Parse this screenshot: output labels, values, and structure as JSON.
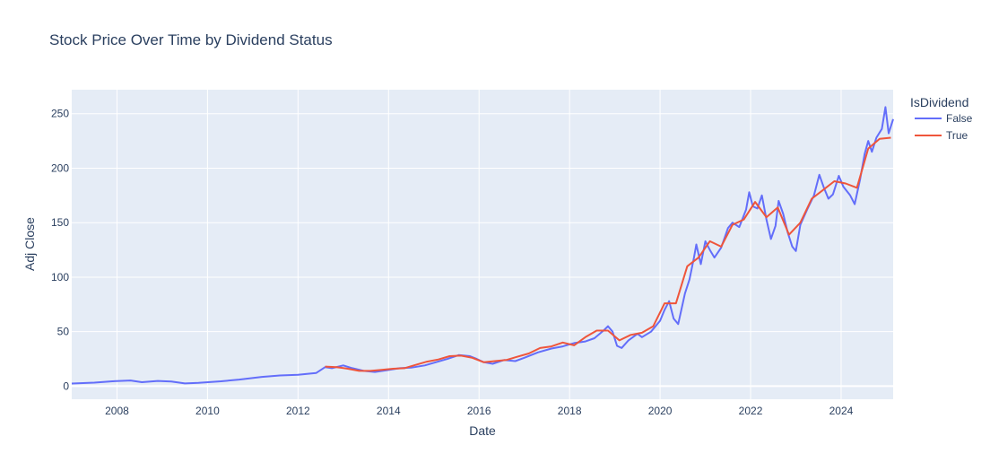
{
  "chart_data": {
    "type": "line",
    "title": "Stock Price Over Time by Dividend Status",
    "xlabel": "Date",
    "ylabel": "Adj Close",
    "xlim": [
      2007.0,
      2025.15
    ],
    "ylim": [
      -12,
      272
    ],
    "x_ticks": [
      2008,
      2010,
      2012,
      2014,
      2016,
      2018,
      2020,
      2022,
      2024
    ],
    "y_ticks": [
      0,
      50,
      100,
      150,
      200,
      250
    ],
    "grid": true,
    "legend_title": "IsDividend",
    "legend_position": "right",
    "series": [
      {
        "name": "False",
        "color": "#636efa",
        "points": [
          [
            2007.0,
            2.4
          ],
          [
            2007.5,
            3.2
          ],
          [
            2007.9,
            4.5
          ],
          [
            2008.3,
            5.2
          ],
          [
            2008.55,
            3.6
          ],
          [
            2008.9,
            4.8
          ],
          [
            2009.2,
            4.3
          ],
          [
            2009.5,
            2.5
          ],
          [
            2009.8,
            3.0
          ],
          [
            2010.3,
            4.5
          ],
          [
            2010.7,
            6.0
          ],
          [
            2011.2,
            8.5
          ],
          [
            2011.6,
            9.8
          ],
          [
            2012.0,
            10.5
          ],
          [
            2012.4,
            12.0
          ],
          [
            2012.6,
            17.5
          ],
          [
            2012.75,
            16.5
          ],
          [
            2013.0,
            19.0
          ],
          [
            2013.2,
            16.5
          ],
          [
            2013.45,
            14.0
          ],
          [
            2013.7,
            13.0
          ],
          [
            2013.95,
            14.5
          ],
          [
            2014.25,
            16.5
          ],
          [
            2014.5,
            17.0
          ],
          [
            2014.8,
            19.0
          ],
          [
            2015.05,
            22.0
          ],
          [
            2015.3,
            25.0
          ],
          [
            2015.55,
            28.5
          ],
          [
            2015.8,
            27.5
          ],
          [
            2015.95,
            25.0
          ],
          [
            2016.1,
            22.0
          ],
          [
            2016.3,
            20.5
          ],
          [
            2016.55,
            24.0
          ],
          [
            2016.8,
            23.0
          ],
          [
            2017.0,
            26.0
          ],
          [
            2017.3,
            31.0
          ],
          [
            2017.6,
            34.5
          ],
          [
            2017.85,
            36.5
          ],
          [
            2018.1,
            39.5
          ],
          [
            2018.35,
            41.0
          ],
          [
            2018.55,
            44.0
          ],
          [
            2018.75,
            51.0
          ],
          [
            2018.85,
            55.0
          ],
          [
            2018.95,
            50.0
          ],
          [
            2019.05,
            37.0
          ],
          [
            2019.15,
            35.0
          ],
          [
            2019.3,
            42.0
          ],
          [
            2019.5,
            48.0
          ],
          [
            2019.6,
            45.0
          ],
          [
            2019.8,
            50.0
          ],
          [
            2020.0,
            60.0
          ],
          [
            2020.1,
            70.0
          ],
          [
            2020.2,
            78.0
          ],
          [
            2020.3,
            62.0
          ],
          [
            2020.4,
            57.0
          ],
          [
            2020.55,
            85.0
          ],
          [
            2020.65,
            98.0
          ],
          [
            2020.75,
            118.0
          ],
          [
            2020.8,
            130.0
          ],
          [
            2020.9,
            112.0
          ],
          [
            2021.0,
            133.0
          ],
          [
            2021.1,
            125.0
          ],
          [
            2021.2,
            118.0
          ],
          [
            2021.35,
            127.0
          ],
          [
            2021.5,
            145.0
          ],
          [
            2021.6,
            150.0
          ],
          [
            2021.75,
            146.0
          ],
          [
            2021.9,
            162.0
          ],
          [
            2021.97,
            178.0
          ],
          [
            2022.05,
            165.0
          ],
          [
            2022.15,
            163.0
          ],
          [
            2022.25,
            175.0
          ],
          [
            2022.35,
            153.0
          ],
          [
            2022.45,
            135.0
          ],
          [
            2022.55,
            147.0
          ],
          [
            2022.62,
            170.0
          ],
          [
            2022.72,
            158.0
          ],
          [
            2022.82,
            141.0
          ],
          [
            2022.92,
            128.0
          ],
          [
            2023.0,
            124.0
          ],
          [
            2023.1,
            148.0
          ],
          [
            2023.25,
            162.0
          ],
          [
            2023.4,
            175.0
          ],
          [
            2023.52,
            194.0
          ],
          [
            2023.62,
            182.0
          ],
          [
            2023.72,
            172.0
          ],
          [
            2023.82,
            176.0
          ],
          [
            2023.95,
            193.0
          ],
          [
            2024.05,
            183.0
          ],
          [
            2024.2,
            175.0
          ],
          [
            2024.3,
            167.0
          ],
          [
            2024.42,
            190.0
          ],
          [
            2024.52,
            213.0
          ],
          [
            2024.6,
            225.0
          ],
          [
            2024.68,
            215.0
          ],
          [
            2024.78,
            228.0
          ],
          [
            2024.9,
            236.0
          ],
          [
            2024.98,
            256.0
          ],
          [
            2025.05,
            232.0
          ],
          [
            2025.15,
            245.0
          ]
        ]
      },
      {
        "name": "True",
        "color": "#ef553b",
        "points": [
          [
            2012.6,
            18.0
          ],
          [
            2012.85,
            17.5
          ],
          [
            2013.1,
            16.0
          ],
          [
            2013.35,
            14.0
          ],
          [
            2013.6,
            14.0
          ],
          [
            2013.85,
            15.0
          ],
          [
            2014.1,
            16.0
          ],
          [
            2014.35,
            16.5
          ],
          [
            2014.6,
            19.5
          ],
          [
            2014.85,
            22.5
          ],
          [
            2015.1,
            24.5
          ],
          [
            2015.35,
            27.5
          ],
          [
            2015.6,
            28.0
          ],
          [
            2015.85,
            26.0
          ],
          [
            2016.1,
            22.0
          ],
          [
            2016.35,
            23.0
          ],
          [
            2016.6,
            24.0
          ],
          [
            2016.85,
            27.0
          ],
          [
            2017.1,
            30.0
          ],
          [
            2017.35,
            35.0
          ],
          [
            2017.6,
            36.5
          ],
          [
            2017.85,
            40.0
          ],
          [
            2018.1,
            37.5
          ],
          [
            2018.35,
            45.0
          ],
          [
            2018.6,
            51.0
          ],
          [
            2018.85,
            51.0
          ],
          [
            2019.1,
            42.0
          ],
          [
            2019.35,
            47.0
          ],
          [
            2019.6,
            49.0
          ],
          [
            2019.85,
            55.0
          ],
          [
            2020.1,
            76.0
          ],
          [
            2020.35,
            76.0
          ],
          [
            2020.6,
            110.0
          ],
          [
            2020.85,
            118.0
          ],
          [
            2021.1,
            133.0
          ],
          [
            2021.35,
            128.0
          ],
          [
            2021.6,
            148.0
          ],
          [
            2021.85,
            153.0
          ],
          [
            2022.1,
            169.0
          ],
          [
            2022.35,
            155.0
          ],
          [
            2022.6,
            164.0
          ],
          [
            2022.85,
            139.0
          ],
          [
            2023.1,
            150.0
          ],
          [
            2023.35,
            172.0
          ],
          [
            2023.6,
            180.0
          ],
          [
            2023.85,
            188.0
          ],
          [
            2024.1,
            186.0
          ],
          [
            2024.35,
            182.0
          ],
          [
            2024.6,
            218.0
          ],
          [
            2024.85,
            227.0
          ],
          [
            2025.1,
            228.0
          ]
        ]
      }
    ]
  }
}
